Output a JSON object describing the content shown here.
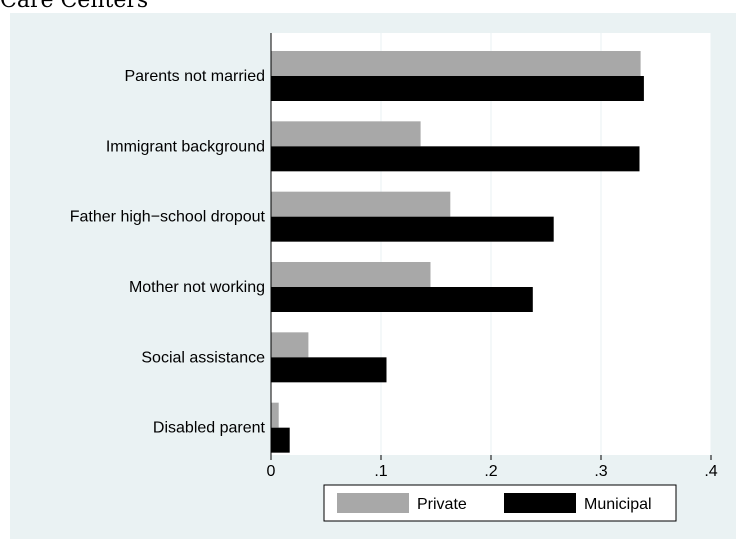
{
  "caption": "Care Centers",
  "chart_data": {
    "type": "bar",
    "orientation": "horizontal",
    "categories": [
      "Parents not married",
      "Immigrant background",
      "Father high−school dropout",
      "Mother not working",
      "Social assistance",
      "Disabled parent"
    ],
    "series": [
      {
        "name": "Private",
        "color": "#a8a8a8",
        "values": [
          0.336,
          0.136,
          0.163,
          0.145,
          0.034,
          0.007
        ]
      },
      {
        "name": "Municipal",
        "color": "#000000",
        "values": [
          0.339,
          0.335,
          0.257,
          0.238,
          0.105,
          0.017
        ]
      }
    ],
    "xlim": [
      0,
      0.4
    ],
    "xticks": [
      0,
      0.1,
      0.2,
      0.3,
      0.4
    ],
    "xtick_labels": [
      "0",
      ".1",
      ".2",
      ".3",
      ".4"
    ],
    "grid": "vertical",
    "legend_position": "bottom"
  }
}
